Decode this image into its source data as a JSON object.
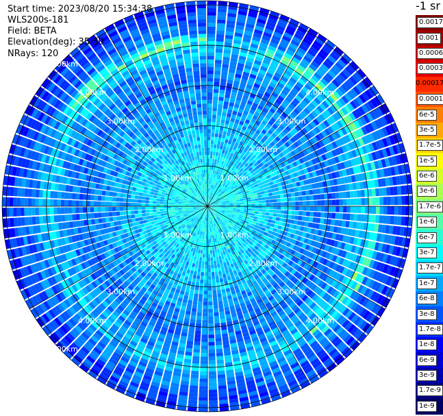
{
  "header": {
    "start_time": "Start time: 2023/08/20 15:34:38",
    "instrument": "WLS200s-181",
    "field": "Field: BETA",
    "elevation": "Elevation(deg): 35.30",
    "nrays": "NRays: 120"
  },
  "chart_data": {
    "type": "heatmap",
    "subtype": "polar-ppi",
    "nrays": 120,
    "range_rings_km": [
      1,
      2,
      3,
      4,
      5
    ],
    "range_labels": [
      "1.00km",
      "2.00km",
      "3.00km",
      "4.00km",
      "5.00km"
    ],
    "max_range_km": 5.1,
    "radial_lines": 12,
    "colorbar": {
      "unit": "-1 sr",
      "labels": [
        "0.0017",
        "0.001",
        "0.0006",
        "0.0003",
        "0.00017",
        "0.0001",
        "6e-5",
        "3e-5",
        "1.7e-5",
        "1e-5",
        "6e-6",
        "3e-6",
        "1.7e-6",
        "1e-6",
        "6e-7",
        "3e-7",
        "1.7e-7",
        "1e-7",
        "6e-8",
        "3e-8",
        "1.7e-8",
        "1e-8",
        "6e-9",
        "3e-9",
        "1.7e-9",
        "1e-9"
      ],
      "colors": [
        "#7f0000",
        "#a00000",
        "#c40000",
        "#e60000",
        "#ff2a00",
        "#ff5500",
        "#ff8000",
        "#ffaa00",
        "#ffd400",
        "#ffff00",
        "#d4ff2b",
        "#aaff55",
        "#7fff80",
        "#55ffaa",
        "#2bffd4",
        "#00ffff",
        "#00d4ff",
        "#00aaff",
        "#0080ff",
        "#0055ff",
        "#002bff",
        "#0000ff",
        "#0000d4",
        "#0000aa",
        "#00007f",
        "#000060"
      ]
    },
    "profile_level_by_range": [
      {
        "r_km": 0.0,
        "level": 15
      },
      {
        "r_km": 1.0,
        "level": 15.5
      },
      {
        "r_km": 1.8,
        "level": 16.5
      },
      {
        "r_km": 2.5,
        "level": 17.5
      },
      {
        "r_km": 3.2,
        "level": 18.5
      },
      {
        "r_km": 3.6,
        "level": 17.5
      },
      {
        "r_km": 4.0,
        "level": 16
      },
      {
        "r_km": 4.3,
        "level": 18
      },
      {
        "r_km": 4.8,
        "level": 19.5
      },
      {
        "r_km": 5.1,
        "level": 20.5
      }
    ]
  }
}
